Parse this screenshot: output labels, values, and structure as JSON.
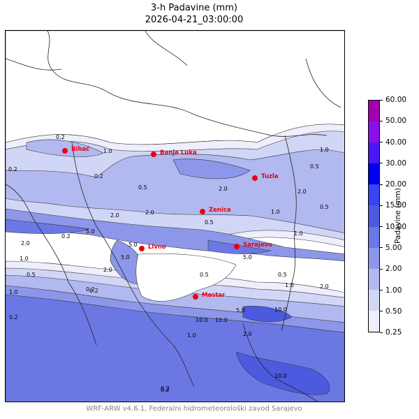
{
  "title": {
    "line1": "3-h Padavine (mm)",
    "line2": "2026-04-21_03:00:00"
  },
  "colorbar": {
    "label": "Padavine (mm)",
    "levels": [
      "0.25",
      "0.50",
      "1.00",
      "2.00",
      "5.00",
      "10.00",
      "15.00",
      "20.00",
      "30.00",
      "40.00",
      "50.00",
      "60.00"
    ],
    "colors": [
      "#eeeefc",
      "#d2d6f6",
      "#b1b9f0",
      "#8c97e9",
      "#6b78e3",
      "#4c5ae0",
      "#3a44f0",
      "#0000ee",
      "#4a18f5",
      "#8a10e8",
      "#a000b0"
    ]
  },
  "cities": [
    {
      "name": "Bihać",
      "key": "bihac"
    },
    {
      "name": "Banja Luka",
      "key": "banja-luka"
    },
    {
      "name": "Tuzla",
      "key": "tuzla"
    },
    {
      "name": "Zenica",
      "key": "zenica"
    },
    {
      "name": "Livno",
      "key": "livno"
    },
    {
      "name": "Sarajevo",
      "key": "sarajevo"
    },
    {
      "name": "Mostar",
      "key": "mostar"
    }
  ],
  "contour_labels": [
    "0.2",
    "1.0",
    "0.2",
    "2.0",
    "1.0",
    "0.5",
    "0.2",
    "0.5",
    "2.0",
    "0.5",
    "2.0",
    "5.0",
    "0.2",
    "5.0",
    "2.0",
    "0.2",
    "1.0",
    "2.0",
    "0.5",
    "1.0",
    "5.0",
    "0.2",
    "10.0",
    "5.0",
    "0.5",
    "10.0",
    "10.0",
    "2.0",
    "1.0",
    "0.2",
    "1.0",
    "0.5",
    "10.0",
    "2.0",
    "0.2",
    "0.2",
    "0.5",
    "1.0",
    "1.0",
    "2.0",
    "5.0"
  ],
  "footer": "WRF-ARW v4.6.1, Federalni hidrometeorološki zavod Sarajevo"
}
